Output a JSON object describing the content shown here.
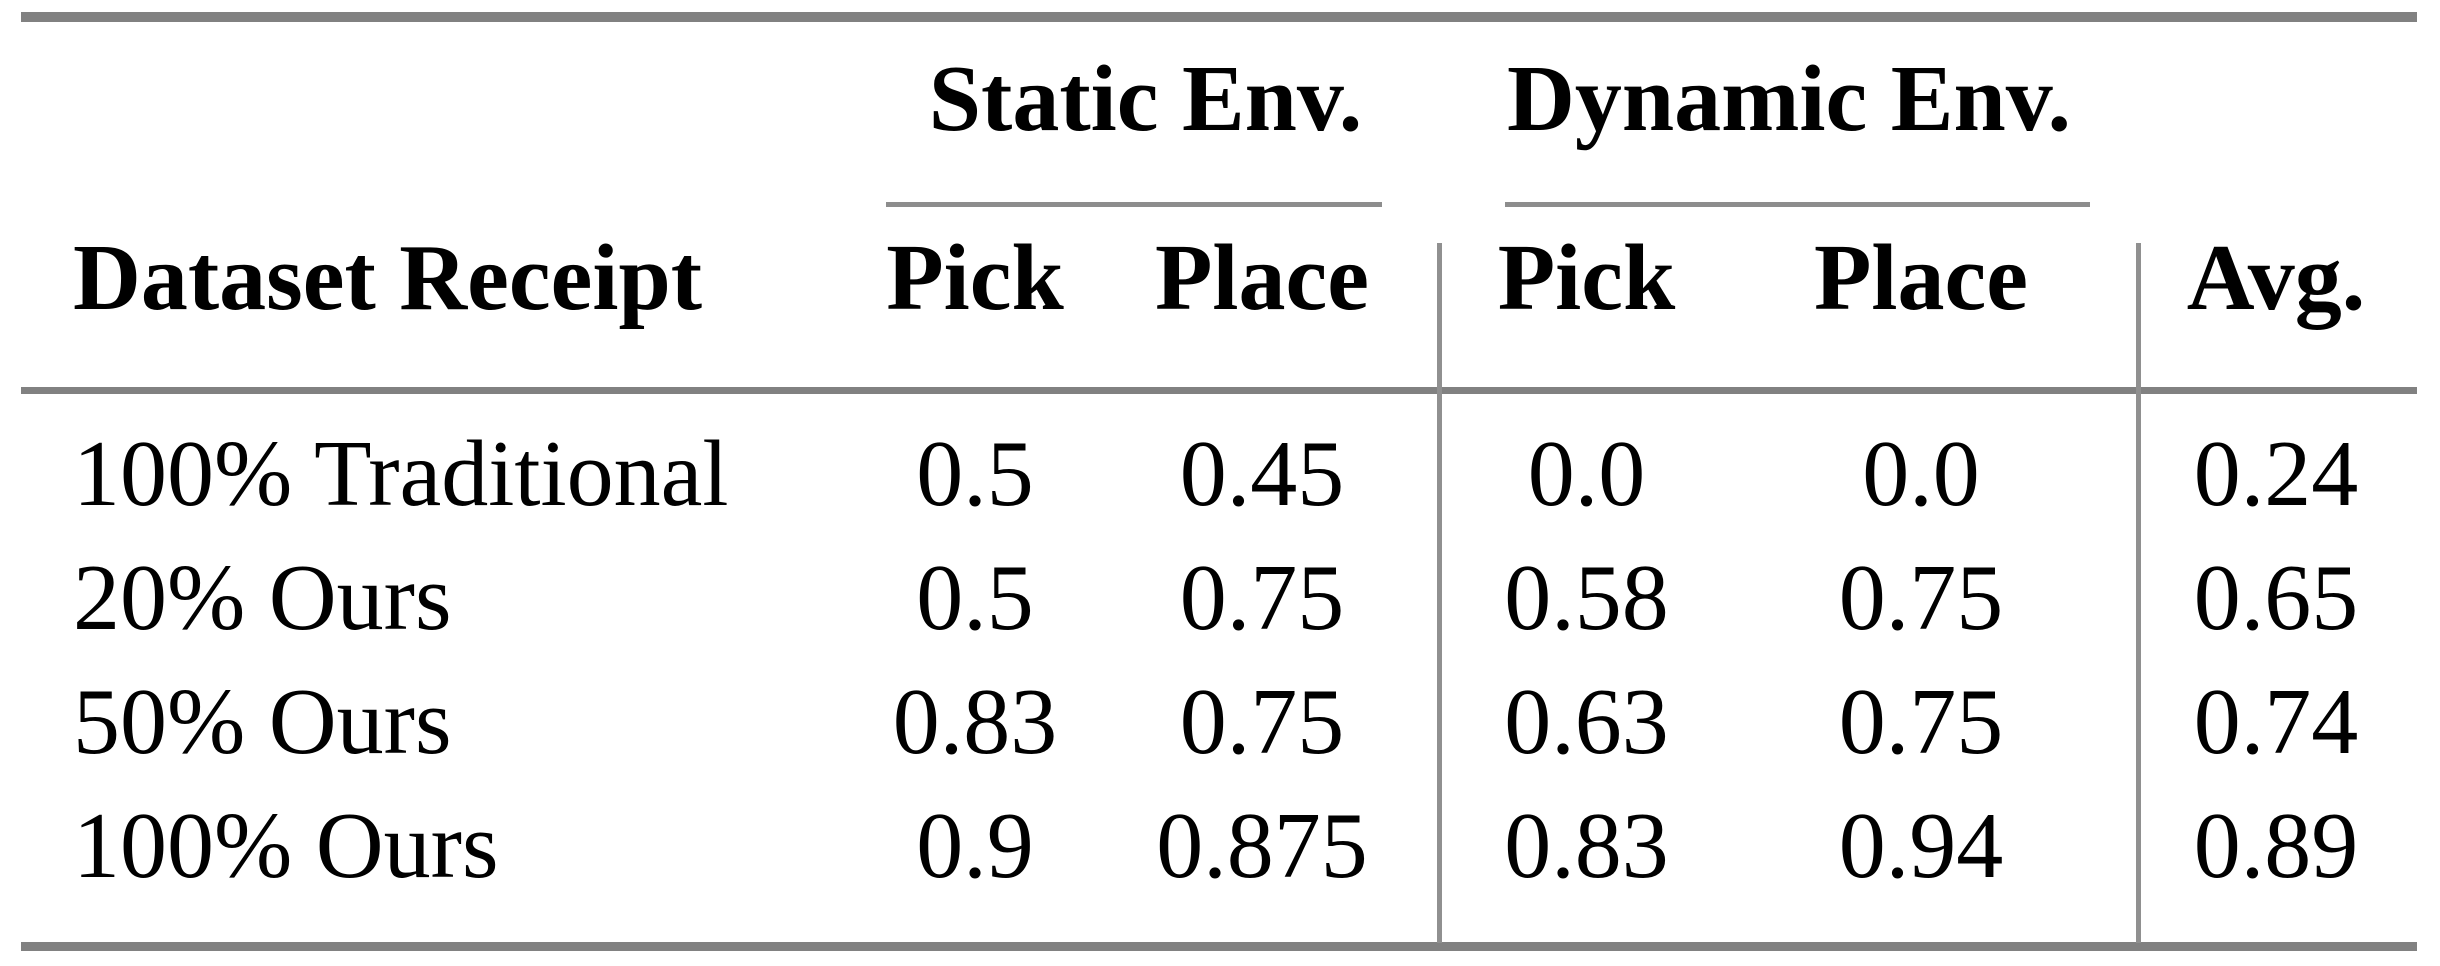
{
  "page": {
    "background_color": "#ffffff",
    "text_color": "#000000",
    "rule_color": "#818181"
  },
  "table": {
    "group_headers": [
      {
        "label": "Static Env."
      },
      {
        "label": "Dynamic Env."
      }
    ],
    "column_headers": {
      "dataset": "Dataset Receipt",
      "static_pick": "Pick",
      "static_place": "Place",
      "dynamic_pick": "Pick",
      "dynamic_place": "Place",
      "avg": "Avg."
    },
    "rows": [
      {
        "label": "100% Traditional",
        "static_pick": "0.5",
        "static_place": "0.45",
        "dynamic_pick": "0.0",
        "dynamic_place": "0.0",
        "avg": "0.24"
      },
      {
        "label": "20% Ours",
        "static_pick": "0.5",
        "static_place": "0.75",
        "dynamic_pick": "0.58",
        "dynamic_place": "0.75",
        "avg": "0.65"
      },
      {
        "label": "50% Ours",
        "static_pick": "0.83",
        "static_place": "0.75",
        "dynamic_pick": "0.63",
        "dynamic_place": "0.75",
        "avg": "0.74"
      },
      {
        "label": "100% Ours",
        "static_pick": "0.9",
        "static_place": "0.875",
        "dynamic_pick": "0.83",
        "dynamic_place": "0.94",
        "avg": "0.89"
      }
    ]
  },
  "chart_data": {
    "type": "table",
    "title": "",
    "columns": [
      "Dataset Receipt",
      "Static Env. Pick",
      "Static Env. Place",
      "Dynamic Env. Pick",
      "Dynamic Env. Place",
      "Avg."
    ],
    "rows": [
      [
        "100% Traditional",
        0.5,
        0.45,
        0.0,
        0.0,
        0.24
      ],
      [
        "20% Ours",
        0.5,
        0.75,
        0.58,
        0.75,
        0.65
      ],
      [
        "50% Ours",
        0.83,
        0.75,
        0.63,
        0.75,
        0.74
      ],
      [
        "100% Ours",
        0.9,
        0.875,
        0.83,
        0.94,
        0.89
      ]
    ]
  }
}
